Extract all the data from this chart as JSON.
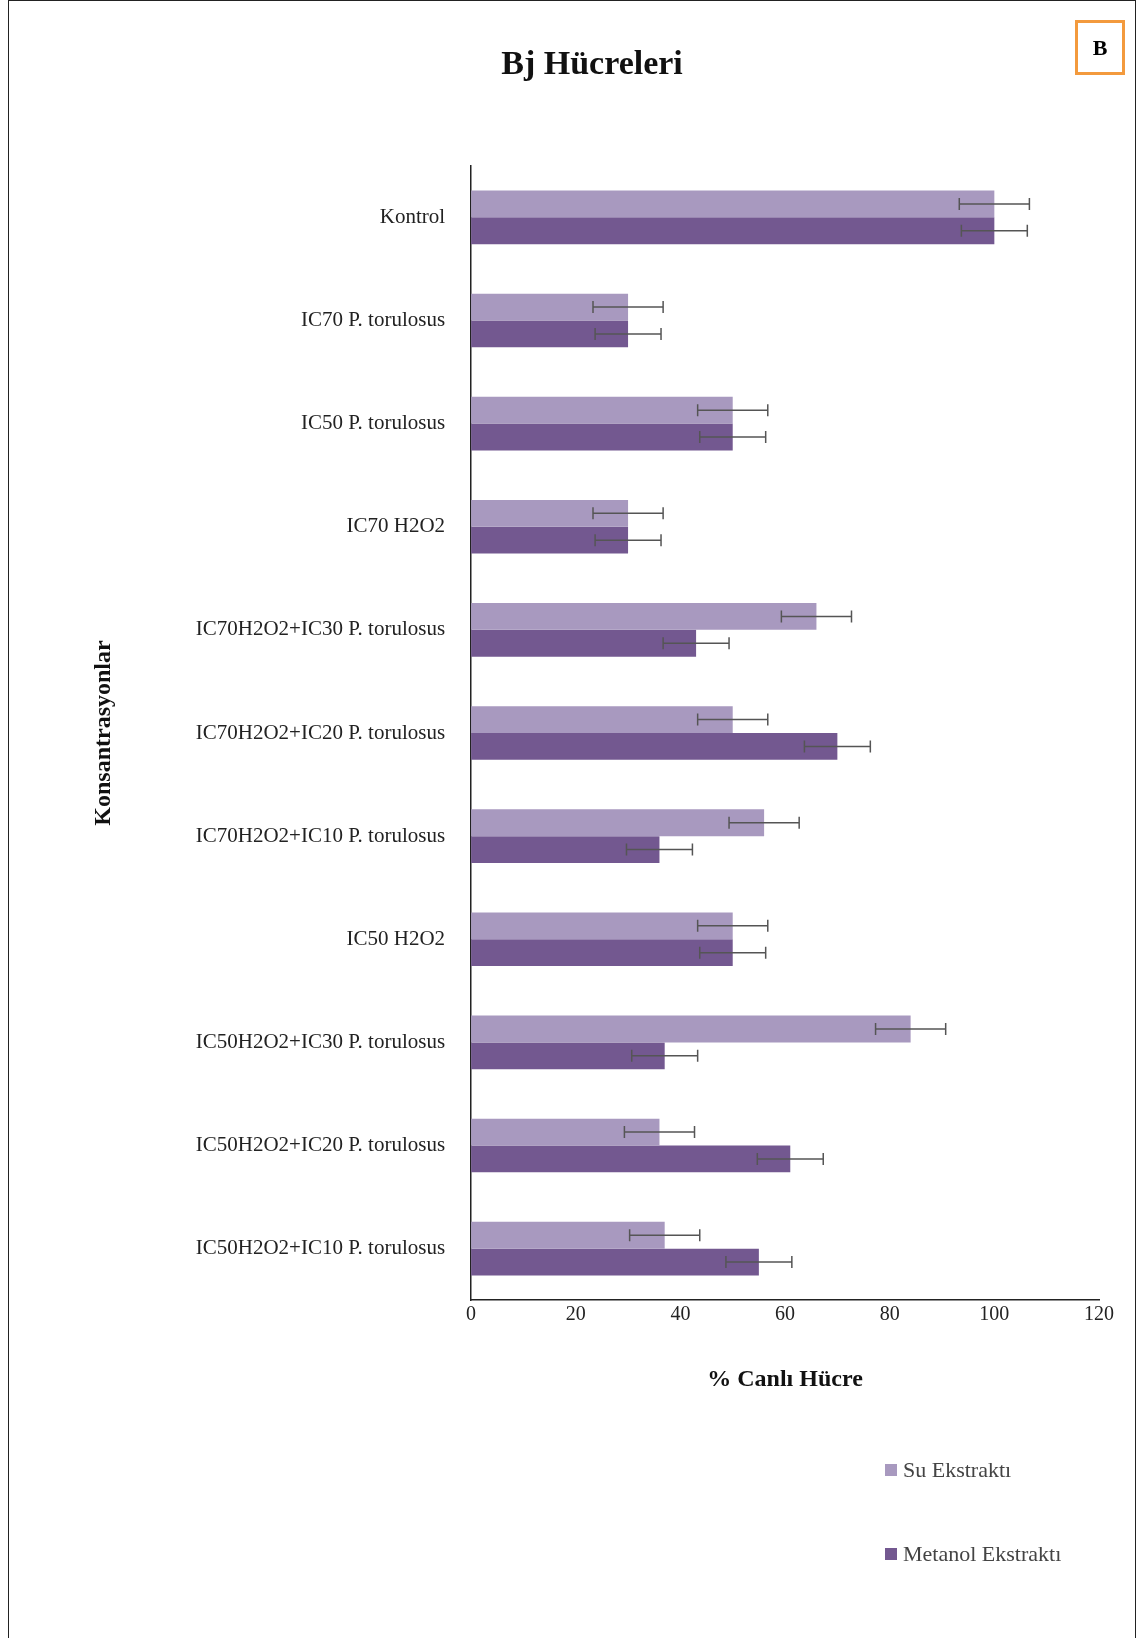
{
  "chart_data": {
    "type": "bar",
    "orientation": "horizontal",
    "title": "Bj Hücreleri",
    "xlabel": "% Canlı Hücre",
    "ylabel": "Konsantrasyonlar",
    "annotations": [
      "B"
    ],
    "categories": [
      "Kontrol",
      "IC70 P. torulosus",
      "IC50 P. torulosus",
      "IC70 H2O2",
      "IC70H2O2+IC30 P. torulosus",
      "IC70H2O2+IC20 P. torulosus",
      "IC70H2O2+IC10 P. torulosus",
      "IC50 H2O2",
      "IC50H2O2+IC30 P. torulosus",
      "IC50H2O2+IC20 P. torulosus",
      "IC50H2O2+IC10 P. torulosus"
    ],
    "series": [
      {
        "name": "Su Ekstraktı",
        "color": "#a899bf",
        "values": [
          100,
          30,
          50,
          30,
          66,
          50,
          56,
          50,
          84,
          36,
          37
        ],
        "errors": [
          6.7,
          6.7,
          6.7,
          6.7,
          6.7,
          6.7,
          6.7,
          6.7,
          6.7,
          6.7,
          6.7
        ]
      },
      {
        "name": "Metanol Ekstraktı",
        "color": "#735890",
        "values": [
          100,
          30,
          50,
          30,
          43,
          70,
          36,
          50,
          37,
          61,
          55
        ],
        "errors": [
          6.3,
          6.3,
          6.3,
          6.3,
          6.3,
          6.3,
          6.3,
          6.3,
          6.3,
          6.3,
          6.3
        ]
      }
    ],
    "xlim": [
      0,
      120
    ],
    "xticks": [
      0,
      20,
      40,
      60,
      80,
      100,
      120
    ],
    "grid": false,
    "legend": "bottom right"
  }
}
